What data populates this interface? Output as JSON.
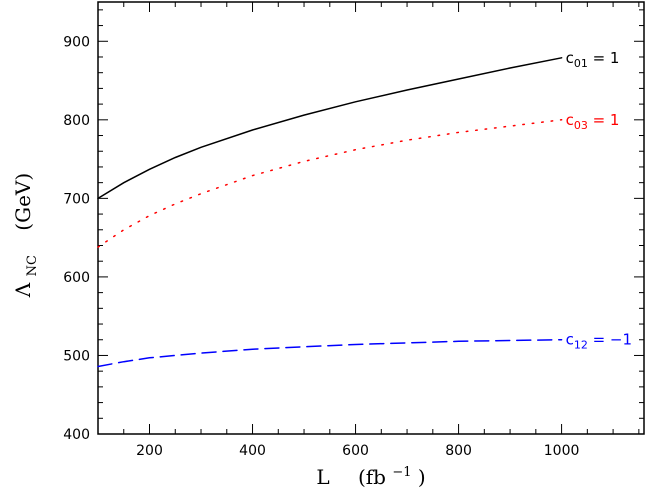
{
  "chart_data": {
    "type": "line",
    "xlabel": {
      "main": "L",
      "unit_open": "(fb",
      "unit_exp": "−1",
      "unit_close": ")"
    },
    "ylabel": {
      "main": "Λ",
      "sub": "NC",
      "unit": "(GeV)"
    },
    "xlim": [
      100,
      1160
    ],
    "ylim": [
      400,
      950
    ],
    "x_ticks": [
      200,
      400,
      600,
      800,
      1000
    ],
    "y_ticks": [
      400,
      500,
      600,
      700,
      800,
      900
    ],
    "grid": false,
    "series": [
      {
        "label_main": "c",
        "label_sub": "01",
        "label_rest": " = 1",
        "color": "#000000",
        "dash": "solid",
        "x": [
          100,
          150,
          200,
          250,
          300,
          400,
          500,
          600,
          700,
          800,
          900,
          1000
        ],
        "y": [
          700,
          720,
          737,
          752,
          765,
          787,
          806,
          823,
          838,
          852,
          866,
          879
        ]
      },
      {
        "label_main": "c",
        "label_sub": "03",
        "label_rest": " = 1",
        "color": "#ff0000",
        "dash": "dotted",
        "x": [
          100,
          150,
          200,
          250,
          300,
          400,
          500,
          600,
          700,
          800,
          900,
          1000
        ],
        "y": [
          638,
          660,
          678,
          693,
          706,
          729,
          747,
          762,
          774,
          784,
          792,
          800
        ]
      },
      {
        "label_main": "c",
        "label_sub": "12",
        "label_rest": " = −1",
        "color": "#0000ff",
        "dash": "dashed",
        "x": [
          100,
          150,
          200,
          300,
          400,
          500,
          600,
          700,
          800,
          900,
          1000
        ],
        "y": [
          486,
          492,
          497,
          503,
          508,
          511,
          514,
          516,
          518,
          519,
          520
        ]
      }
    ]
  }
}
